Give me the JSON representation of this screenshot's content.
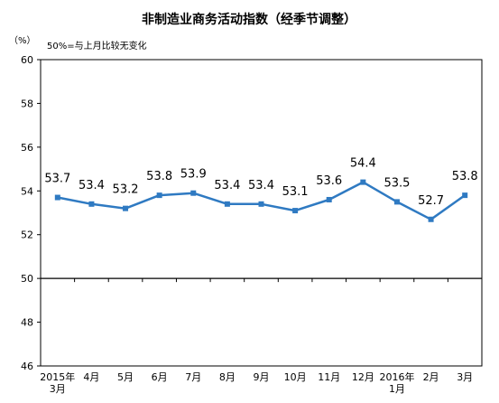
{
  "chart_data": {
    "type": "line",
    "title": "非制造业商务活动指数（经季节调整）",
    "unit_label": "（%）",
    "note": "50%=与上月比较无变化",
    "ylim": [
      46,
      60
    ],
    "yticks": [
      46,
      48,
      50,
      52,
      54,
      56,
      58,
      60
    ],
    "reference_value": 50,
    "grid": false,
    "categories": [
      [
        "2015年",
        "3月"
      ],
      [
        "4月"
      ],
      [
        "5月"
      ],
      [
        "6月"
      ],
      [
        "7月"
      ],
      [
        "8月"
      ],
      [
        "9月"
      ],
      [
        "10月"
      ],
      [
        "11月"
      ],
      [
        "12月"
      ],
      [
        "2016年",
        "1月"
      ],
      [
        "2月"
      ],
      [
        "3月"
      ]
    ],
    "series": [
      {
        "values": [
          53.7,
          53.4,
          53.2,
          53.8,
          53.9,
          53.4,
          53.4,
          53.1,
          53.6,
          54.4,
          53.5,
          52.7,
          53.8
        ]
      }
    ],
    "data_labels": [
      "53.7",
      "53.4",
      "53.2",
      "53.8",
      "53.9",
      "53.4",
      "53.4",
      "53.1",
      "53.6",
      "54.4",
      "53.5",
      "52.7",
      "53.8"
    ],
    "colors": {
      "line": "#2F7AC2",
      "axis": "#000000"
    }
  }
}
